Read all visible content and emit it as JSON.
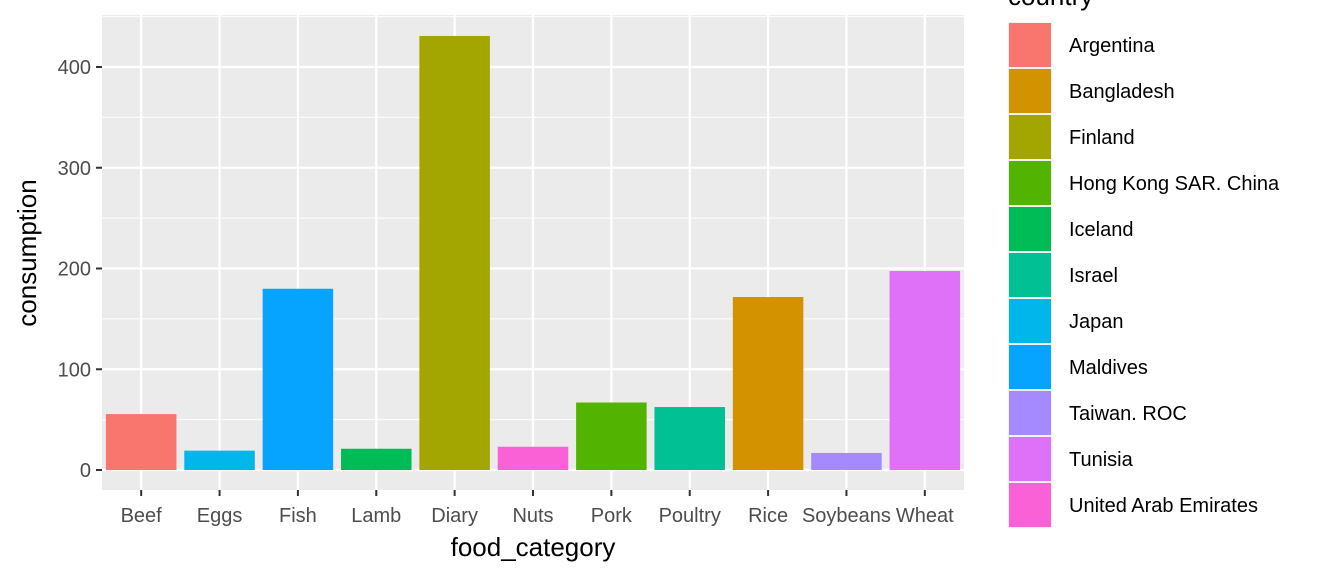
{
  "chart_data": {
    "type": "bar",
    "title": "",
    "xlabel": "food_category",
    "ylabel": "consumption",
    "ylim": [
      0,
      440
    ],
    "yticks": [
      0,
      100,
      200,
      300,
      400
    ],
    "grid": true,
    "legend_title": "country",
    "legend_position": "right",
    "categories": [
      "Beef",
      "Eggs",
      "Fish",
      "Lamb",
      "Diary",
      "Nuts",
      "Pork",
      "Poultry",
      "Rice",
      "Soybeans",
      "Wheat"
    ],
    "values": [
      55.5,
      19.2,
      179.9,
      21.1,
      430.8,
      23.1,
      67.0,
      62.5,
      171.7,
      16.95,
      197.5
    ],
    "bar_country": [
      "Argentina",
      "Japan",
      "Maldives",
      "Iceland",
      "Finland",
      "United Arab Emirates",
      "Hong Kong SAR. China",
      "Israel",
      "Bangladesh",
      "Taiwan. ROC",
      "Tunisia"
    ],
    "legend": [
      {
        "name": "Argentina",
        "color": "#F8766D"
      },
      {
        "name": "Bangladesh",
        "color": "#D39200"
      },
      {
        "name": "Finland",
        "color": "#A3A500"
      },
      {
        "name": "Hong Kong SAR. China",
        "color": "#53B400"
      },
      {
        "name": "Iceland",
        "color": "#00BC56"
      },
      {
        "name": "Israel",
        "color": "#00C094"
      },
      {
        "name": "Japan",
        "color": "#00B6EB"
      },
      {
        "name": "Maldives",
        "color": "#06A4FF"
      },
      {
        "name": "Taiwan. ROC",
        "color": "#A58AFF"
      },
      {
        "name": "Tunisia",
        "color": "#DF70F8"
      },
      {
        "name": "United Arab Emirates",
        "color": "#FB61D7"
      }
    ],
    "panel_color": "#EBEBEB",
    "grid_color": "#FFFFFF"
  }
}
